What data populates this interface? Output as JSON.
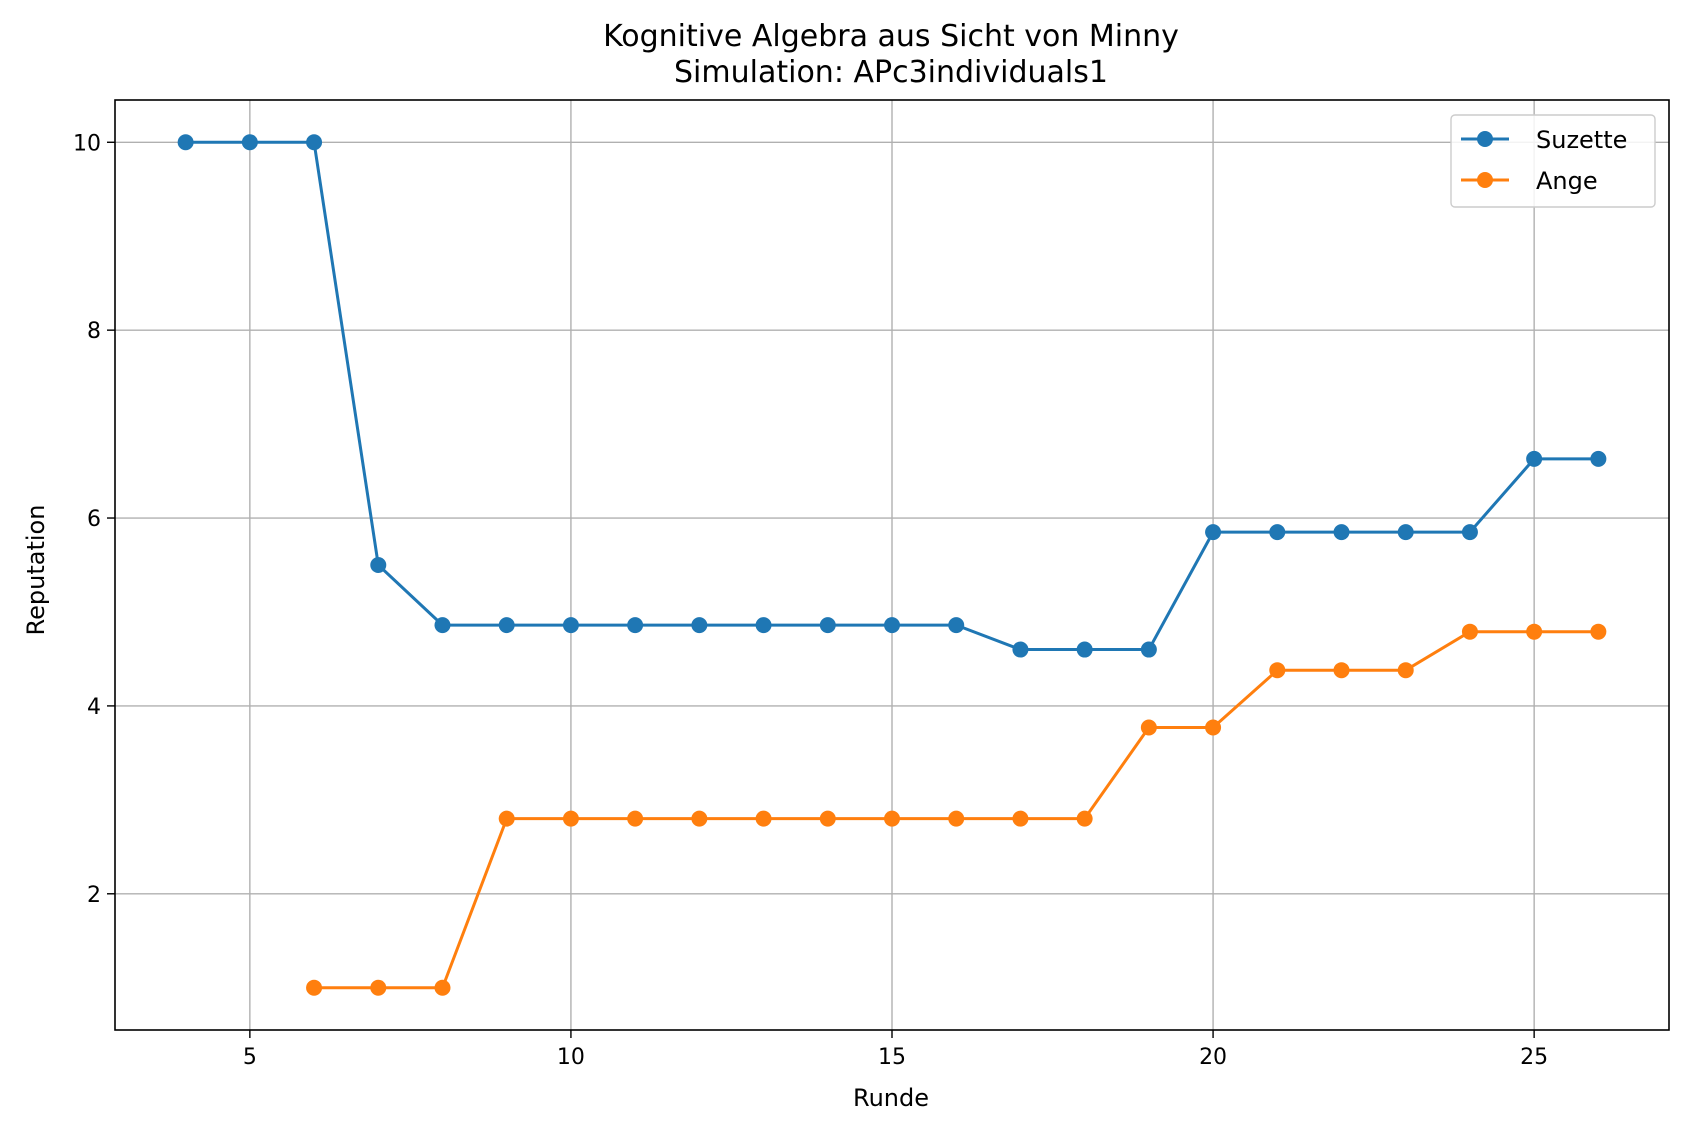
{
  "chart_data": {
    "type": "line",
    "title": "Kognitive Algebra aus Sicht von Minny",
    "subtitle": "Simulation: APc3individuals1",
    "xlabel": "Runde",
    "ylabel": "Reputation",
    "xlim": [
      2.9,
      27.1
    ],
    "ylim": [
      0.55,
      10.45
    ],
    "xticks": [
      5,
      10,
      15,
      20,
      25
    ],
    "yticks": [
      2,
      4,
      6,
      8,
      10
    ],
    "grid": true,
    "legend_position": "top-right",
    "series": [
      {
        "name": "Suzette",
        "color": "#1f77b4",
        "marker": "circle",
        "x": [
          4,
          5,
          6,
          7,
          8,
          9,
          10,
          11,
          12,
          13,
          14,
          15,
          16,
          17,
          18,
          19,
          20,
          21,
          22,
          23,
          24,
          25,
          26
        ],
        "y": [
          10.0,
          10.0,
          10.0,
          5.5,
          4.86,
          4.86,
          4.86,
          4.86,
          4.86,
          4.86,
          4.86,
          4.86,
          4.86,
          4.6,
          4.6,
          4.6,
          5.85,
          5.85,
          5.85,
          5.85,
          5.85,
          6.63,
          6.63
        ]
      },
      {
        "name": "Ange",
        "color": "#ff7f0e",
        "marker": "circle",
        "x": [
          6,
          7,
          8,
          9,
          10,
          11,
          12,
          13,
          14,
          15,
          16,
          17,
          18,
          19,
          20,
          21,
          22,
          23,
          24,
          25,
          26
        ],
        "y": [
          1.0,
          1.0,
          1.0,
          2.8,
          2.8,
          2.8,
          2.8,
          2.8,
          2.8,
          2.8,
          2.8,
          2.8,
          2.8,
          3.77,
          3.77,
          4.38,
          4.38,
          4.38,
          4.79,
          4.79,
          4.79
        ]
      }
    ]
  }
}
